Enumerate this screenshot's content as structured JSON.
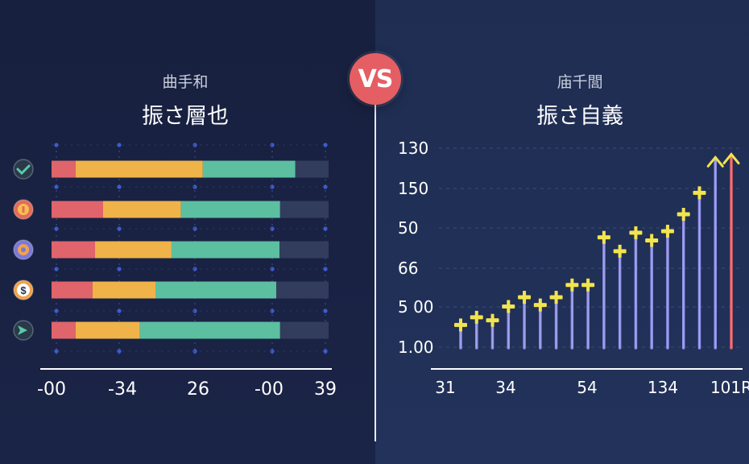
{
  "badge": {
    "label": "VS"
  },
  "left": {
    "subtitle": "曲手和",
    "title": "振さ層也"
  },
  "right": {
    "subtitle": "庙千閭",
    "title": "振さ自義"
  },
  "colors": {
    "red": "#e0646b",
    "orange": "#f0b349",
    "teal": "#5cbfa0",
    "track": "#323d5e",
    "line": "#8f8fe8",
    "marker": "#f2e44e",
    "last_line": "#e85f63"
  },
  "chart_data": [
    {
      "type": "bar",
      "orientation": "horizontal",
      "stacked": true,
      "x_tick_labels": [
        "-00",
        "-34",
        "26",
        "-00",
        "39"
      ],
      "row_icons": [
        "check-icon",
        "coin-icon",
        "gear-coin-icon",
        "dollar-icon",
        "arrow-icon"
      ],
      "series": [
        {
          "values": [
            8.7,
            18.6,
            15.7,
            14.8,
            8.7
          ],
          "color": "red"
        },
        {
          "values": [
            45.9,
            28.1,
            27.6,
            22.7,
            23.2
          ],
          "color": "orange"
        },
        {
          "values": [
            33.4,
            35.8,
            39.0,
            43.6,
            50.6
          ],
          "color": "teal"
        },
        {
          "values": [
            12.0,
            17.5,
            17.7,
            18.9,
            17.5
          ],
          "color": "track"
        }
      ],
      "grid": true
    },
    {
      "type": "line",
      "style": "stem",
      "x_tick_labels": [
        "31",
        "34",
        "54",
        "134",
        "101R"
      ],
      "y_tick_labels": [
        "130",
        "150",
        "50",
        "66",
        "5 00",
        "1.00"
      ],
      "values": [
        15,
        20,
        18,
        27,
        33,
        28,
        33,
        41,
        41,
        72,
        63,
        75,
        70,
        76,
        87,
        101,
        123,
        125
      ],
      "ylim": [
        0,
        130
      ],
      "grid": true
    }
  ]
}
